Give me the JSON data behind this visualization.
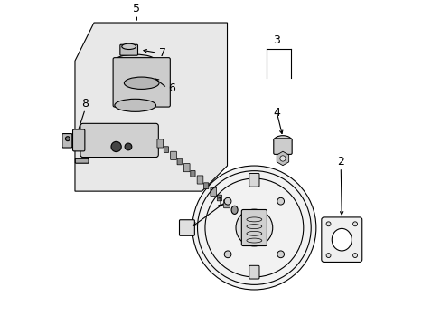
{
  "bg_color": "#ffffff",
  "line_color": "#000000",
  "part_box_fill": "#e8e8e8",
  "label_fontsize": 9
}
